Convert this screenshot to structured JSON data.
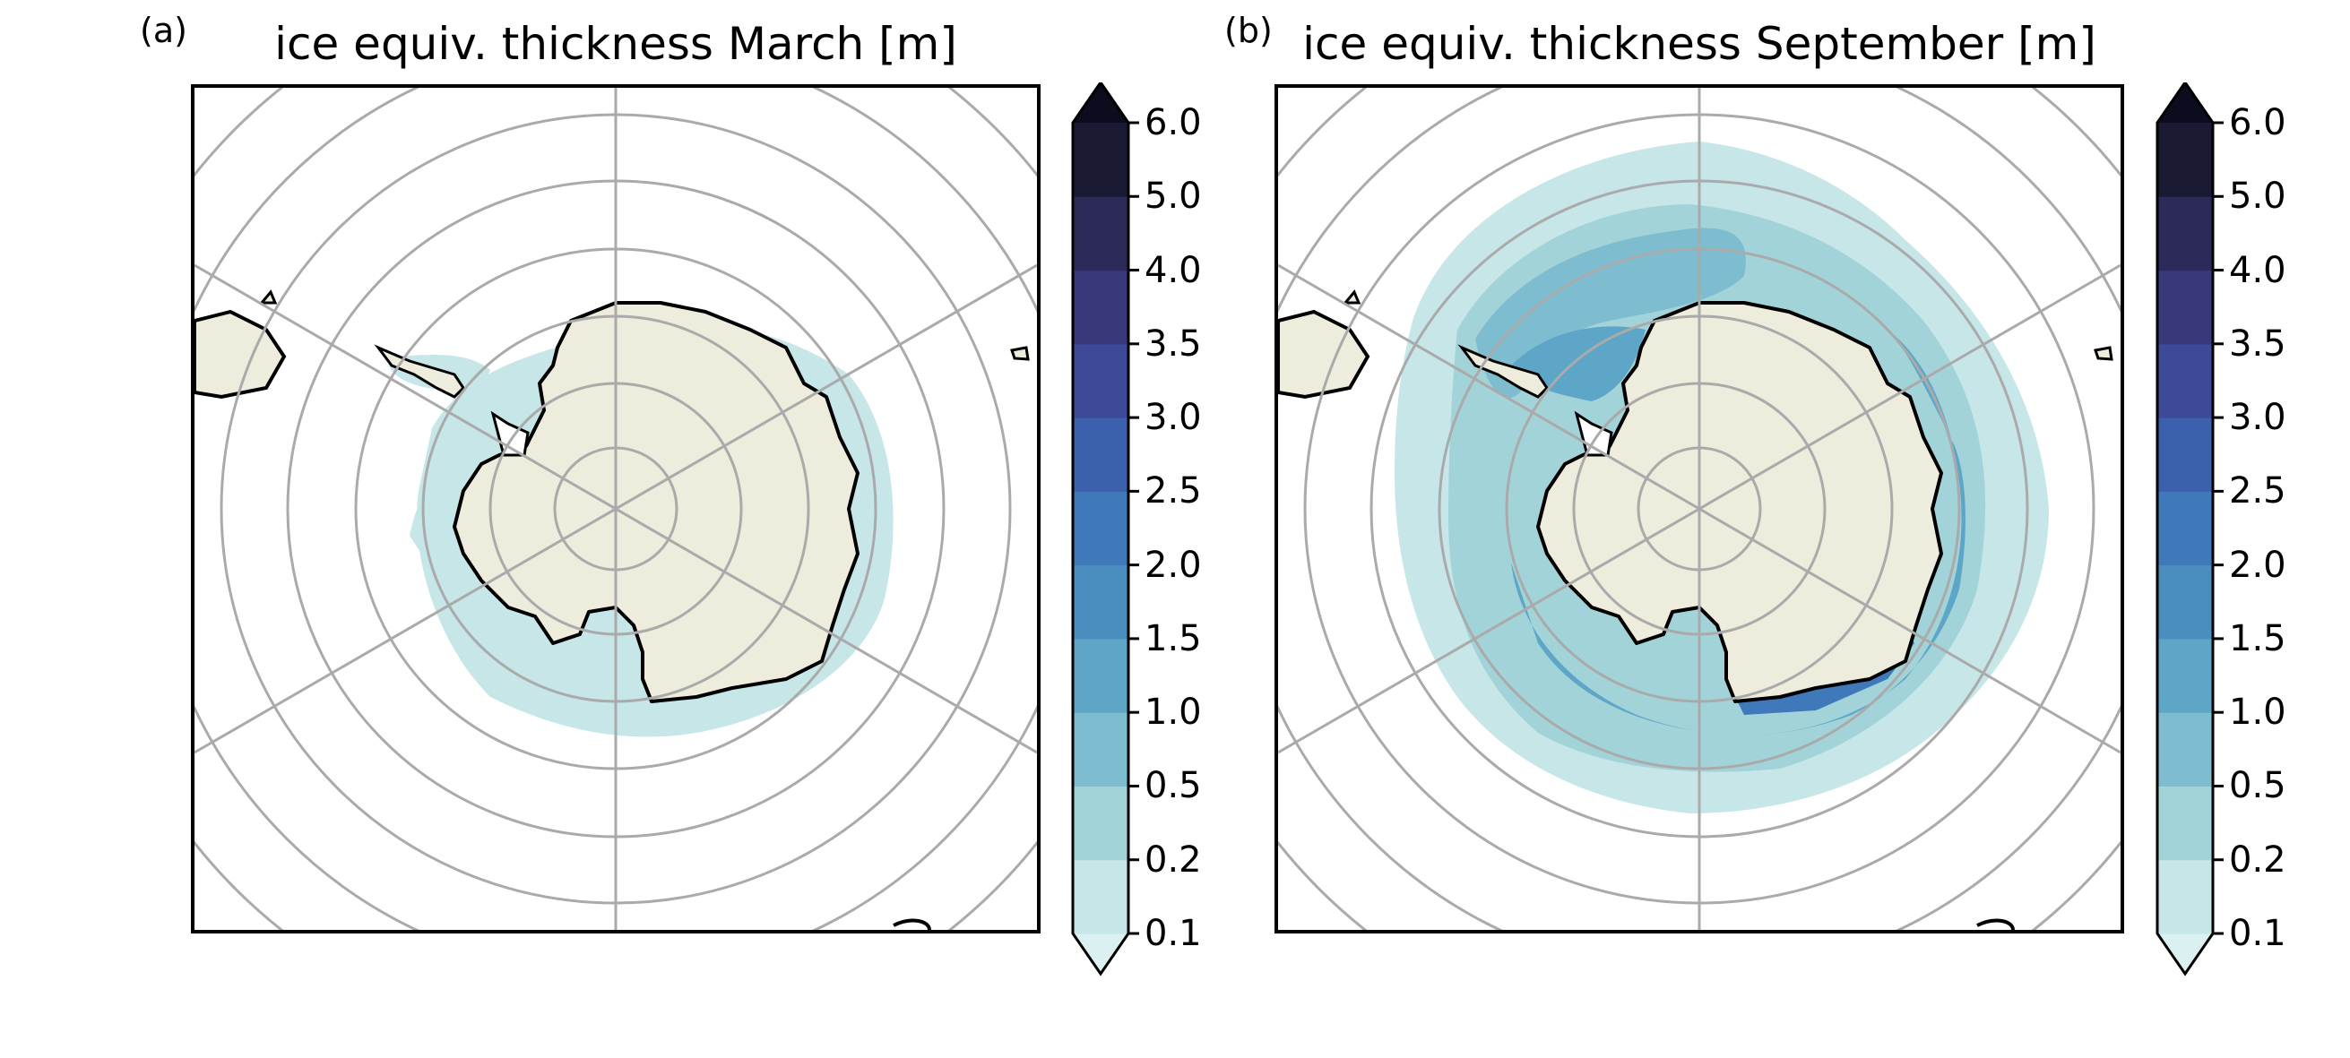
{
  "panels": [
    {
      "label": "(a)",
      "title": "ice equiv. thickness March [m]"
    },
    {
      "label": "(b)",
      "title": "ice equiv. thickness September [m]"
    }
  ],
  "colorbar": {
    "ticks": [
      "0.1",
      "0.2",
      "0.5",
      "1.0",
      "1.5",
      "2.0",
      "2.5",
      "3.0",
      "3.5",
      "4.0",
      "5.0",
      "6.0"
    ],
    "colors": [
      "#c6e6e8",
      "#a2d3d9",
      "#7ebdcf",
      "#5da6c8",
      "#4a8ebf",
      "#3f79b9",
      "#3c61ac",
      "#3c4a98",
      "#39387a",
      "#2c2a58",
      "#1a1a35"
    ],
    "under_color": "#daf0f1",
    "over_color": "#0b0c1d",
    "extend": "both"
  },
  "map_colors": {
    "land": "#eeecdc",
    "coast": "#000000",
    "grid": "#aaaaaa"
  }
}
